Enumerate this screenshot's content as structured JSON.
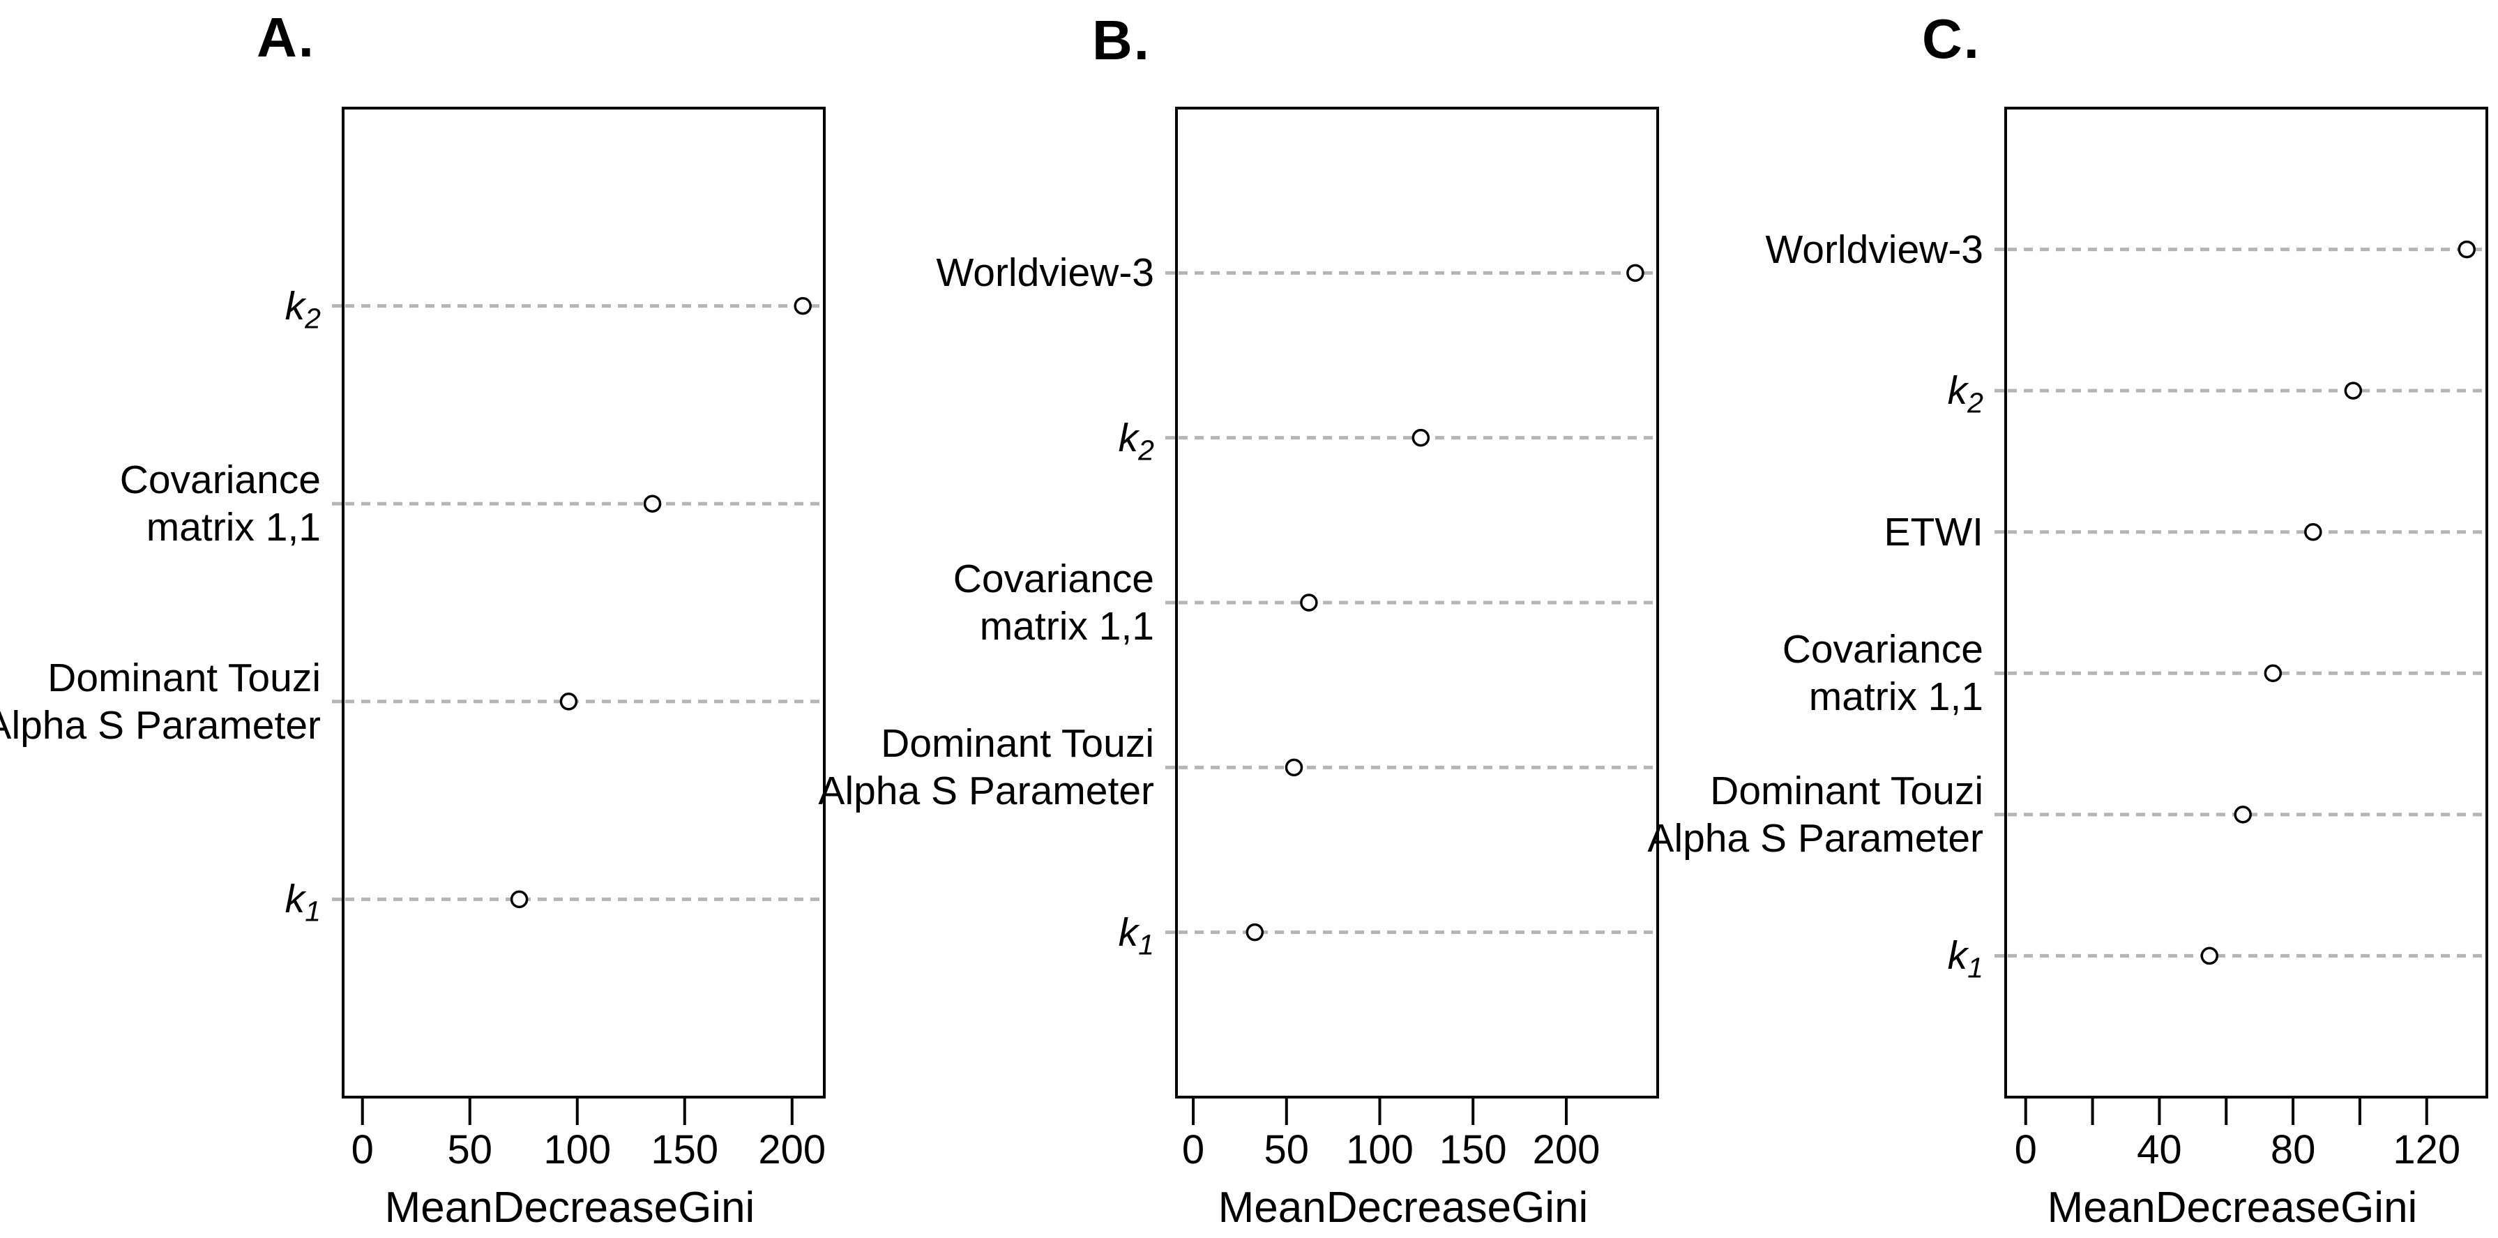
{
  "colors": {
    "background": "#ffffff",
    "axis": "#000000",
    "grid": "#b5b5b5",
    "point_stroke": "#000000",
    "point_fill": "#ffffff",
    "text": "#000000"
  },
  "chart_data": [
    {
      "type": "scatter",
      "variant": "horizontal-dot-plot",
      "title": "A.",
      "xlabel": "MeanDecreaseGini",
      "categories": [
        "k2",
        "Covariance matrix 1,1",
        "Dominant Touzi Alpha S Parameter",
        "k1"
      ],
      "category_lines": [
        [
          "k_2"
        ],
        [
          "Covariance",
          "matrix 1,1"
        ],
        [
          "Dominant Touzi",
          "Alpha S Parameter"
        ],
        [
          "k_1"
        ]
      ],
      "values": [
        205,
        135,
        96,
        73
      ],
      "xticks": [
        0,
        50,
        100,
        150,
        200
      ],
      "xtick_labels": [
        "0",
        "50",
        "100",
        "150",
        "200"
      ],
      "xlim": [
        -9,
        215
      ],
      "grid": "dashed-horizontal",
      "legend": "none"
    },
    {
      "type": "scatter",
      "variant": "horizontal-dot-plot",
      "title": "B.",
      "xlabel": "MeanDecreaseGini",
      "categories": [
        "Worldview-3",
        "k2",
        "Covariance matrix 1,1",
        "Dominant Touzi Alpha S Parameter",
        "k1"
      ],
      "category_lines": [
        [
          "Worldview-3"
        ],
        [
          "k_2"
        ],
        [
          "Covariance",
          "matrix 1,1"
        ],
        [
          "Dominant Touzi",
          "Alpha S Parameter"
        ],
        [
          "k_1"
        ]
      ],
      "values": [
        237,
        122,
        62,
        54,
        33
      ],
      "xticks": [
        0,
        50,
        100,
        150,
        200
      ],
      "xtick_labels": [
        "0",
        "50",
        "100",
        "150",
        "200"
      ],
      "xlim": [
        -9,
        249
      ],
      "grid": "dashed-horizontal",
      "legend": "none"
    },
    {
      "type": "scatter",
      "variant": "horizontal-dot-plot",
      "title": "C.",
      "xlabel": "MeanDecreaseGini",
      "categories": [
        "Worldview-3",
        "k2",
        "ETWI",
        "Covariance matrix 1,1",
        "Dominant Touzi Alpha S Parameter",
        "k1"
      ],
      "category_lines": [
        [
          "Worldview-3"
        ],
        [
          "k_2"
        ],
        [
          "ETWI"
        ],
        [
          "Covariance",
          "matrix 1,1"
        ],
        [
          "Dominant Touzi",
          "Alpha S Parameter"
        ],
        [
          "k_1"
        ]
      ],
      "values": [
        132,
        98,
        86,
        74,
        65,
        55
      ],
      "xticks": [
        0,
        20,
        40,
        60,
        80,
        100,
        120
      ],
      "xtick_labels": [
        "0",
        "",
        "40",
        "",
        "80",
        "",
        "120"
      ],
      "xlim": [
        -6,
        138
      ],
      "grid": "dashed-horizontal",
      "legend": "none"
    }
  ]
}
